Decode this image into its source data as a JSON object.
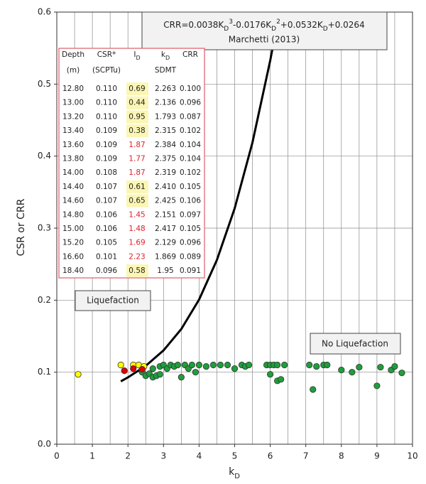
{
  "chart_data": {
    "type": "scatter",
    "ylabel": "CSR or CRR",
    "xlabel": [
      "k",
      "D"
    ],
    "xlim": [
      0,
      10
    ],
    "ylim": [
      0,
      0.6
    ],
    "xticks": [
      0,
      1,
      2,
      3,
      4,
      5,
      6,
      7,
      8,
      9,
      10
    ],
    "xminorticks": [
      0.5,
      1.5,
      2.5,
      3.5,
      4.5,
      5.5,
      6.5,
      7.5,
      8.5,
      9.5
    ],
    "yticks": [
      {
        "value": 0,
        "label": "0.0"
      },
      0.1,
      0.2,
      0.3,
      0.4,
      0.5,
      0.6
    ],
    "grid": true,
    "series": [
      {
        "color": "#1f9e3c",
        "x": [
          2.4,
          2.5,
          2.6,
          2.7,
          2.8,
          2.9,
          2.7,
          2.9,
          3.0,
          3.1,
          3.2,
          3.3,
          3.4,
          3.5,
          3.6,
          3.7,
          3.8,
          3.9,
          4.0,
          4.2,
          4.4,
          4.6,
          4.8,
          5.0,
          5.2,
          5.3,
          5.4,
          5.9,
          6.0,
          6.0,
          6.1,
          6.2,
          6.2,
          6.3,
          6.4,
          7.1,
          7.2,
          7.3,
          7.5,
          7.6,
          8.0,
          8.3,
          8.5,
          9.0,
          9.1,
          9.4,
          9.5,
          9.7
        ],
        "values": [
          0.1,
          0.095,
          0.098,
          0.093,
          0.095,
          0.097,
          0.105,
          0.108,
          0.11,
          0.105,
          0.11,
          0.108,
          0.11,
          0.093,
          0.11,
          0.105,
          0.11,
          0.1,
          0.11,
          0.108,
          0.11,
          0.11,
          0.11,
          0.105,
          0.11,
          0.108,
          0.11,
          0.11,
          0.097,
          0.11,
          0.11,
          0.088,
          0.11,
          0.09,
          0.11,
          0.11,
          0.076,
          0.108,
          0.11,
          0.11,
          0.103,
          0.1,
          0.107,
          0.081,
          0.107,
          0.103,
          0.108,
          0.099
        ]
      },
      {
        "color": "#ffff00",
        "x": [
          0.6,
          1.8,
          2.15,
          2.3,
          2.45
        ],
        "values": [
          0.097,
          0.11,
          0.11,
          0.11,
          0.108
        ]
      },
      {
        "color": "#e00000",
        "x": [
          1.9,
          2.15,
          2.4
        ],
        "values": [
          0.102,
          0.105,
          0.104
        ]
      }
    ],
    "curve": {
      "color": "#000000",
      "x": [
        1.8,
        2,
        2.5,
        3,
        3.5,
        4,
        4.5,
        5,
        5.5,
        6,
        6.2,
        6.25
      ],
      "values": [
        0.0873,
        0.0928,
        0.1088,
        0.1302,
        0.1599,
        0.2008,
        0.2557,
        0.3274,
        0.4188,
        0.5328,
        0.5849,
        0.599
      ]
    },
    "annotation": {
      "formula": [
        [
          "CRR=0.0038K",
          ""
        ],
        [
          "D",
          "sub"
        ],
        [
          "3",
          "super"
        ],
        [
          "-0.0176K",
          ""
        ],
        [
          "D",
          "sub"
        ],
        [
          "2",
          "super"
        ],
        [
          "+0.0532K",
          ""
        ],
        [
          "D",
          "sub"
        ],
        [
          "+0.0264",
          ""
        ]
      ],
      "source": "Marchetti (2013)"
    },
    "region_labels": [
      "Liquefaction",
      "No Liquefaction"
    ],
    "inset_table": {
      "headers": [
        [
          "Depth"
        ],
        [
          "CSR*"
        ],
        [
          "I",
          "D"
        ],
        [
          "k",
          "D"
        ],
        [
          "CRR"
        ]
      ],
      "units": [
        "(m)",
        "(SCPTu)",
        null,
        "SDMT",
        null
      ],
      "rows": [
        [
          "12.80",
          "0.110",
          "0.69",
          "2.263",
          "0.100"
        ],
        [
          "13.00",
          "0.110",
          "0.44",
          "2.136",
          "0.096"
        ],
        [
          "13.20",
          "0.110",
          "0.95",
          "1.793",
          "0.087"
        ],
        [
          "13.40",
          "0.109",
          "0.38",
          "2.315",
          "0.102"
        ],
        [
          "13.60",
          "0.109",
          "1.87",
          "2.384",
          "0.104"
        ],
        [
          "13.80",
          "0.109",
          "1.77",
          "2.375",
          "0.104"
        ],
        [
          "14.00",
          "0.108",
          "1.87",
          "2.319",
          "0.102"
        ],
        [
          "14.40",
          "0.107",
          "0.61",
          "2.410",
          "0.105"
        ],
        [
          "14.60",
          "0.107",
          "0.65",
          "2.425",
          "0.106"
        ],
        [
          "14.80",
          "0.106",
          "1.45",
          "2.151",
          "0.097"
        ],
        [
          "15.00",
          "0.106",
          "1.48",
          "2.417",
          "0.105"
        ],
        [
          "15.20",
          "0.105",
          "1.69",
          "2.129",
          "0.096"
        ],
        [
          "16.60",
          "0.101",
          "2.23",
          "1.869",
          "0.089"
        ],
        [
          "18.40",
          "0.096",
          "0.58",
          "1.95",
          "0.091"
        ]
      ],
      "id_highlight": [
        "yellow",
        "yellow",
        "yellow",
        "yellow",
        "red",
        "red",
        "red",
        "yellow",
        "yellow",
        "red",
        "red",
        "red",
        "red",
        "yellow"
      ]
    }
  }
}
